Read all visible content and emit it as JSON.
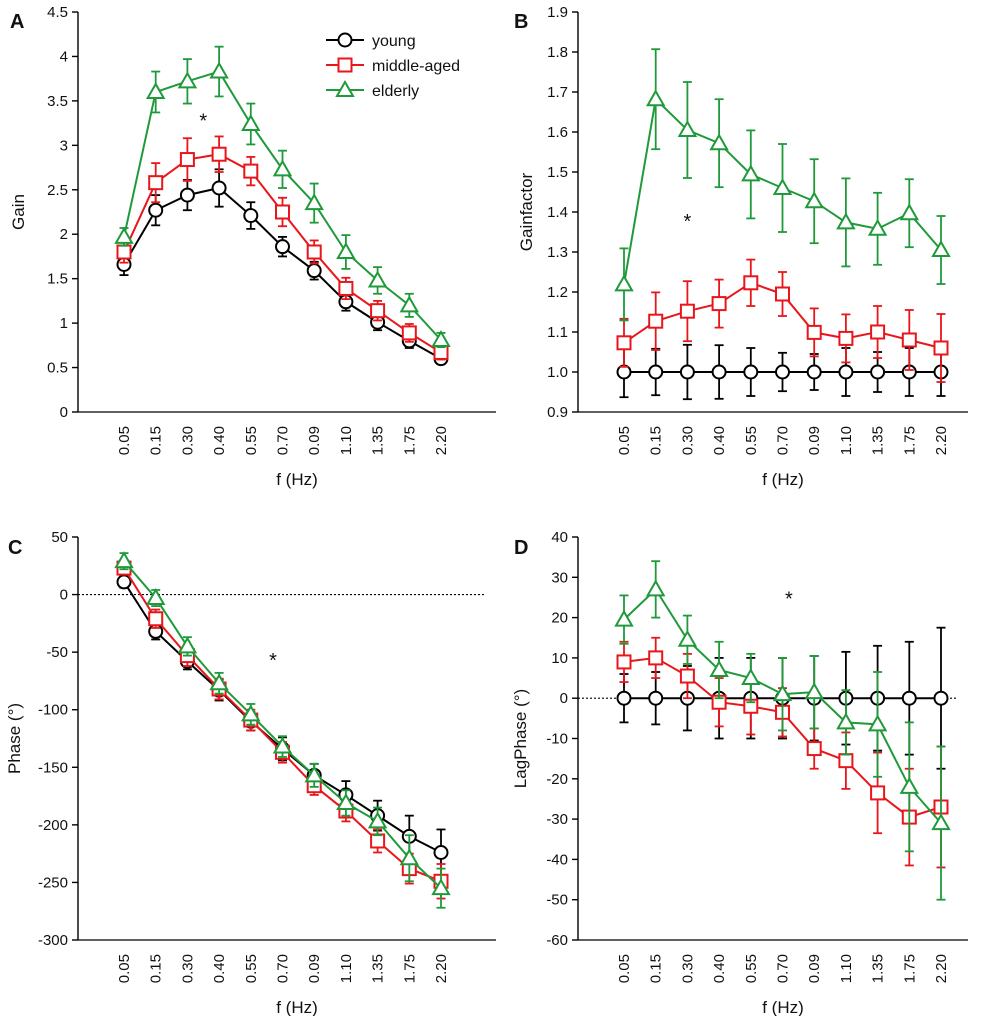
{
  "figure": {
    "title": ""
  },
  "legend": {
    "young": "young",
    "middle_aged": "middle-aged",
    "elderly": "elderly"
  },
  "series_style": {
    "young": {
      "color": "#000000",
      "marker": "circle"
    },
    "middle-aged": {
      "color": "#e8161b",
      "marker": "square"
    },
    "elderly": {
      "color": "#1f9a3a",
      "marker": "triangle"
    }
  },
  "chart_data": [
    {
      "panel": "A",
      "type": "line",
      "title": "",
      "xlabel": "f (Hz)",
      "ylabel": "Gain",
      "categories": [
        "0.05",
        "0.15",
        "0.30",
        "0.40",
        "0.55",
        "0.70",
        "0.09",
        "1.10",
        "1.35",
        "1.75",
        "2.20"
      ],
      "ylim": [
        0,
        4.5
      ],
      "yticks": [
        0,
        0.5,
        1,
        1.5,
        2,
        2.5,
        3,
        3.5,
        4,
        4.5
      ],
      "ytick_labels": [
        "0",
        "0.5",
        "1",
        "1.5",
        "2",
        "2.5",
        "3",
        "3.5",
        "4",
        "4.5"
      ],
      "star": {
        "label": "*",
        "cat_pos": 2.5,
        "y": 3.2
      },
      "series": [
        {
          "name": "young",
          "values": [
            1.66,
            2.27,
            2.44,
            2.52,
            2.21,
            1.86,
            1.59,
            1.24,
            1.01,
            0.8,
            0.6
          ],
          "err": [
            0.12,
            0.17,
            0.17,
            0.21,
            0.15,
            0.11,
            0.1,
            0.1,
            0.09,
            0.08,
            0.04
          ]
        },
        {
          "name": "middle-aged",
          "values": [
            1.8,
            2.58,
            2.84,
            2.9,
            2.71,
            2.25,
            1.8,
            1.39,
            1.14,
            0.89,
            0.67
          ],
          "err": [
            0.12,
            0.22,
            0.24,
            0.2,
            0.16,
            0.16,
            0.13,
            0.12,
            0.11,
            0.1,
            0.08
          ]
        },
        {
          "name": "elderly",
          "values": [
            1.97,
            3.6,
            3.72,
            3.83,
            3.24,
            2.73,
            2.35,
            1.8,
            1.48,
            1.2,
            0.81
          ],
          "err": [
            0.1,
            0.23,
            0.25,
            0.28,
            0.23,
            0.21,
            0.22,
            0.19,
            0.15,
            0.13,
            0.08
          ]
        }
      ]
    },
    {
      "panel": "B",
      "type": "line",
      "title": "",
      "xlabel": "f (Hz)",
      "ylabel": "Gainfactor",
      "categories": [
        "0.05",
        "0.15",
        "0.30",
        "0.40",
        "0.55",
        "0.70",
        "0.09",
        "1.10",
        "1.35",
        "1.75",
        "2.20"
      ],
      "ylim": [
        0.9,
        1.9
      ],
      "yticks": [
        0.9,
        1.0,
        1.1,
        1.2,
        1.3,
        1.4,
        1.5,
        1.6,
        1.7,
        1.8,
        1.9
      ],
      "ytick_labels": [
        "0.9",
        "1.0",
        "1.1",
        "1.2",
        "1.3",
        "1.4",
        "1.5",
        "1.6",
        "1.7",
        "1.8",
        "1.9"
      ],
      "star": {
        "label": "*",
        "cat_pos": 2.0,
        "y": 1.36
      },
      "series": [
        {
          "name": "young",
          "values": [
            1.0,
            1.0,
            1.0,
            1.0,
            1.0,
            1.0,
            1.0,
            1.0,
            1.0,
            1.0,
            1.0
          ],
          "err": [
            0.063,
            0.058,
            0.068,
            0.067,
            0.06,
            0.048,
            0.045,
            0.06,
            0.05,
            0.06,
            0.06
          ]
        },
        {
          "name": "middle-aged",
          "values": [
            1.073,
            1.127,
            1.152,
            1.171,
            1.223,
            1.195,
            1.099,
            1.084,
            1.1,
            1.08,
            1.06
          ],
          "err": [
            0.06,
            0.072,
            0.075,
            0.06,
            0.058,
            0.055,
            0.06,
            0.06,
            0.065,
            0.075,
            0.085
          ]
        },
        {
          "name": "elderly",
          "values": [
            1.219,
            1.682,
            1.605,
            1.572,
            1.494,
            1.46,
            1.427,
            1.374,
            1.358,
            1.397,
            1.305
          ],
          "err": [
            0.09,
            0.125,
            0.12,
            0.11,
            0.11,
            0.11,
            0.105,
            0.11,
            0.09,
            0.085,
            0.085
          ]
        }
      ]
    },
    {
      "panel": "C",
      "type": "line",
      "title": "",
      "xlabel": "f (Hz)",
      "ylabel": "Phase (°)",
      "categories": [
        "0.05",
        "0.15",
        "0.30",
        "0.40",
        "0.55",
        "0.70",
        "0.09",
        "1.10",
        "1.35",
        "1.75",
        "2.20"
      ],
      "ylim": [
        -300,
        50
      ],
      "yticks": [
        -300,
        -250,
        -200,
        -150,
        -100,
        -50,
        0,
        50
      ],
      "ytick_labels": [
        "-300",
        "-250",
        "-200",
        "-150",
        "-100",
        "-50",
        "0",
        "50"
      ],
      "ref_line": 0,
      "star": {
        "label": "*",
        "cat_pos": 4.7,
        "y": -63
      },
      "series": [
        {
          "name": "young",
          "values": [
            11,
            -32,
            -58,
            -83,
            -110,
            -134,
            -157,
            -174,
            -192,
            -210,
            -224
          ],
          "err": [
            5,
            7,
            7,
            9,
            8,
            10,
            10,
            12,
            13,
            18,
            20
          ]
        },
        {
          "name": "middle-aged",
          "values": [
            23,
            -21,
            -53,
            -82,
            -109,
            -137,
            -166,
            -188,
            -214,
            -238,
            -249
          ],
          "err": [
            5,
            8,
            9,
            9,
            9,
            9,
            8,
            9,
            10,
            13,
            15
          ]
        },
        {
          "name": "elderly",
          "values": [
            29,
            -3,
            -45,
            -77,
            -104,
            -132,
            -157,
            -181,
            -197,
            -229,
            -255
          ],
          "err": [
            7,
            7,
            8,
            9,
            9,
            9,
            10,
            11,
            12,
            20,
            17
          ]
        }
      ]
    },
    {
      "panel": "D",
      "type": "line",
      "title": "",
      "xlabel": "f (Hz)",
      "ylabel": "LagPhase (°)",
      "categories": [
        "0.05",
        "0.15",
        "0.30",
        "0.40",
        "0.55",
        "0.70",
        "0.09",
        "1.10",
        "1.35",
        "1.75",
        "2.20"
      ],
      "ylim": [
        -60,
        40
      ],
      "yticks": [
        -60,
        -50,
        -40,
        -30,
        -20,
        -10,
        0,
        10,
        20,
        30,
        40
      ],
      "ytick_labels": [
        "-60",
        "-50",
        "-40",
        "-30",
        "-20",
        "-10",
        "0",
        "10",
        "20",
        "30",
        "40"
      ],
      "ref_line": 0,
      "star": {
        "label": "*",
        "cat_pos": 5.2,
        "y": 23
      },
      "series": [
        {
          "name": "young",
          "values": [
            0,
            0,
            0,
            0,
            0,
            0,
            0,
            0,
            0,
            0,
            0
          ],
          "err": [
            6,
            6.5,
            8,
            10,
            10,
            10,
            10.5,
            11.5,
            13,
            14,
            17.5
          ]
        },
        {
          "name": "middle-aged",
          "values": [
            9,
            10,
            5.5,
            -1,
            -2,
            -3.5,
            -12.5,
            -15.5,
            -23.5,
            -29.5,
            -27
          ],
          "err": [
            5,
            5,
            5.5,
            6,
            7,
            6,
            5,
            7,
            10,
            12,
            15
          ]
        },
        {
          "name": "elderly",
          "values": [
            19.5,
            27,
            14.5,
            7,
            5,
            1,
            1.5,
            -6,
            -6.5,
            -22,
            -31
          ],
          "err": [
            6,
            7,
            6,
            7,
            6,
            9,
            9,
            8,
            13,
            16,
            19
          ]
        }
      ]
    }
  ]
}
